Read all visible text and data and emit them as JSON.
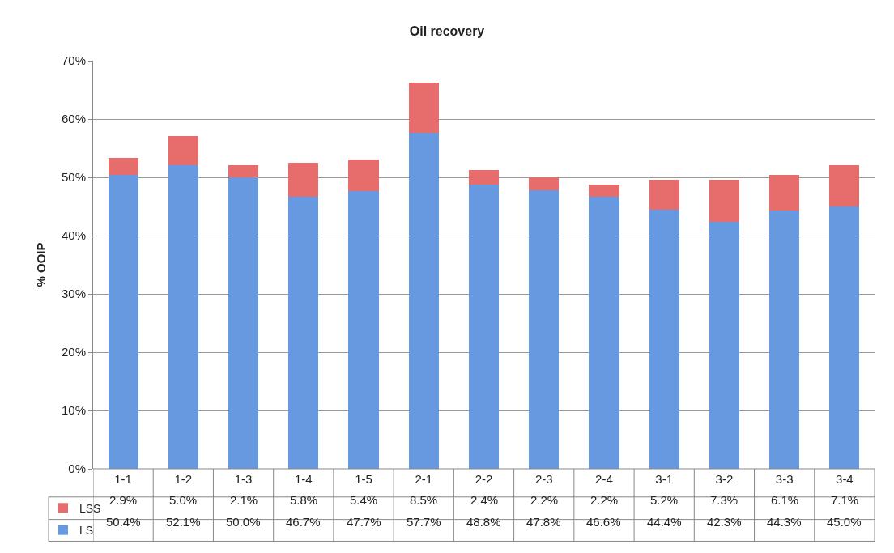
{
  "chart_data": {
    "type": "bar",
    "title": "Oil recovery",
    "ylabel": "% OOIP",
    "stacked": true,
    "grid": "y",
    "legend": "bottom left",
    "categories": [
      "1-1",
      "1-2",
      "1-3",
      "1-4",
      "1-5",
      "2-1",
      "2-2",
      "2-3",
      "2-4",
      "3-1",
      "3-2",
      "3-3",
      "3-4"
    ],
    "ylim": [
      0,
      70
    ],
    "yticks": [
      {
        "value": 0,
        "label": "0%"
      },
      {
        "value": 10,
        "label": "10%"
      },
      {
        "value": 20,
        "label": "20%"
      },
      {
        "value": 30,
        "label": "30%"
      },
      {
        "value": 40,
        "label": "40%"
      },
      {
        "value": 50,
        "label": "50%"
      },
      {
        "value": 60,
        "label": "60%"
      },
      {
        "value": 70,
        "label": "70%"
      }
    ],
    "series": [
      {
        "name": "LS",
        "color": "#6699e0",
        "values": [
          50.4,
          52.1,
          50.0,
          46.7,
          47.7,
          57.7,
          48.8,
          47.8,
          46.6,
          44.4,
          42.3,
          44.3,
          45.0
        ],
        "value_labels": [
          "50.4%",
          "52.1%",
          "50.0%",
          "46.7%",
          "47.7%",
          "57.7%",
          "48.8%",
          "47.8%",
          "46.6%",
          "44.4%",
          "42.3%",
          "44.3%",
          "45.0%"
        ]
      },
      {
        "name": "LSS",
        "color": "#e76d6d",
        "values": [
          2.9,
          5.0,
          2.1,
          5.8,
          5.4,
          8.5,
          2.4,
          2.2,
          2.2,
          5.2,
          7.3,
          6.1,
          7.1
        ],
        "value_labels": [
          "2.9%",
          "5.0%",
          "2.1%",
          "5.8%",
          "5.4%",
          "8.5%",
          "2.4%",
          "2.2%",
          "2.2%",
          "5.2%",
          "7.3%",
          "6.1%",
          "7.1%"
        ]
      }
    ]
  }
}
